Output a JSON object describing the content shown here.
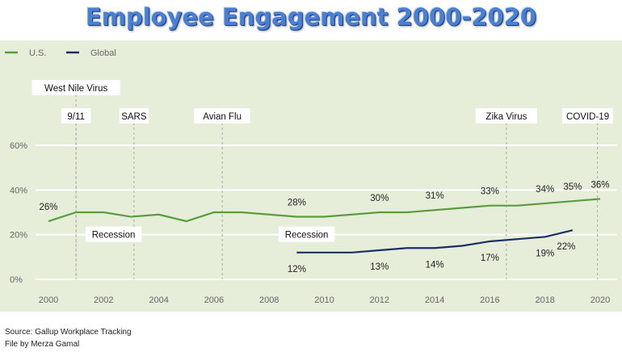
{
  "title": "Employee Engagement 2000-2020",
  "footer": {
    "source": "Source: Gallup Workplace Tracking",
    "credit": "File by Merza Gamal"
  },
  "chart_data": {
    "type": "line",
    "title": "Employee Engagement 2000-2020",
    "xlabel": "",
    "ylabel": "",
    "xlim": [
      2000,
      2020
    ],
    "ylim": [
      0,
      60
    ],
    "x_ticks": [
      2000,
      2002,
      2004,
      2006,
      2008,
      2010,
      2012,
      2014,
      2016,
      2018,
      2020
    ],
    "y_ticks": [
      0,
      20,
      40,
      60
    ],
    "y_tick_labels": [
      "0%",
      "20%",
      "40%",
      "60%"
    ],
    "grid": "horizontal",
    "legend": "top-left",
    "background": "#e6eeda",
    "series": [
      {
        "name": "U.S.",
        "color": "#5a9e3c",
        "x": [
          2000,
          2001,
          2002,
          2003,
          2004,
          2005,
          2006,
          2007,
          2008,
          2009,
          2010,
          2011,
          2012,
          2013,
          2014,
          2015,
          2016,
          2017,
          2018,
          2019,
          2020
        ],
        "values": [
          26,
          30,
          30,
          28,
          29,
          26,
          30,
          30,
          29,
          28,
          28,
          29,
          30,
          30,
          31,
          32,
          33,
          33,
          34,
          35,
          36
        ],
        "labels": [
          "26%",
          null,
          null,
          null,
          null,
          null,
          null,
          null,
          null,
          "28%",
          null,
          null,
          "30%",
          null,
          "31%",
          null,
          "33%",
          null,
          "34%",
          "35%",
          "36%"
        ]
      },
      {
        "name": "Global",
        "color": "#1b2f66",
        "x": [
          2009,
          2010,
          2011,
          2012,
          2013,
          2014,
          2015,
          2016,
          2017,
          2018,
          2019
        ],
        "values": [
          12,
          12,
          12,
          13,
          14,
          14,
          15,
          17,
          18,
          19,
          22
        ],
        "labels": [
          "12%",
          null,
          null,
          "13%",
          null,
          "14%",
          null,
          "17%",
          null,
          "19%",
          "22%"
        ]
      }
    ],
    "annotations": [
      {
        "text": "West Nile Virus",
        "x": 2001,
        "row": 0
      },
      {
        "text": "9/11",
        "x": 2001,
        "row": 1
      },
      {
        "text": "SARS",
        "x": 2003.1,
        "row": 1
      },
      {
        "text": "Avian Flu",
        "x": 2006.3,
        "row": 1
      },
      {
        "text": "Zika Virus",
        "x": 2016.6,
        "row": 1
      },
      {
        "text": "COVID-19",
        "x": 2019.9,
        "row": 1
      }
    ],
    "period_labels": [
      {
        "text": "Recession",
        "x": 2002.3,
        "y": 20
      },
      {
        "text": "Recession",
        "x": 2009.3,
        "y": 20
      }
    ]
  }
}
